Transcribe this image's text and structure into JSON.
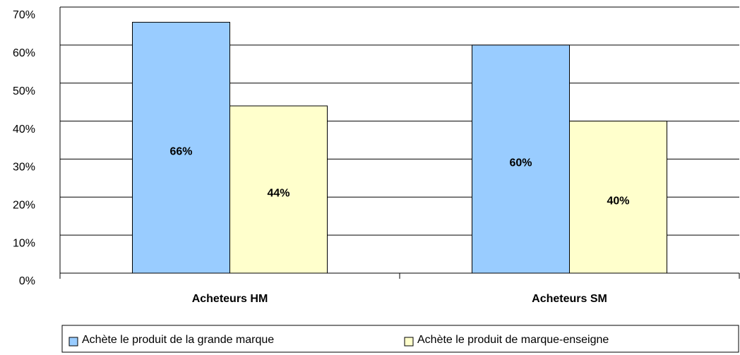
{
  "chart_data": {
    "type": "bar",
    "categories": [
      "Acheteurs HM",
      "Acheteurs SM"
    ],
    "series": [
      {
        "name": "Achète le produit de la grande marque",
        "color": "#99ccff",
        "values": [
          66,
          60
        ],
        "value_labels": [
          "66%",
          "60%"
        ]
      },
      {
        "name": "Achète le produit de marque-enseigne",
        "color": "#ffffcc",
        "values": [
          44,
          40
        ],
        "value_labels": [
          "44%",
          "40%"
        ]
      }
    ],
    "ylim": [
      0,
      70
    ],
    "yticks": [
      {
        "value": 0,
        "label": "0%"
      },
      {
        "value": 10,
        "label": "10%"
      },
      {
        "value": 20,
        "label": "20%"
      },
      {
        "value": 30,
        "label": "30%"
      },
      {
        "value": 40,
        "label": "40%"
      },
      {
        "value": 50,
        "label": "50%"
      },
      {
        "value": 60,
        "label": "60%"
      },
      {
        "value": 70,
        "label": "70%"
      }
    ],
    "grid": true,
    "legend": "bottom"
  }
}
